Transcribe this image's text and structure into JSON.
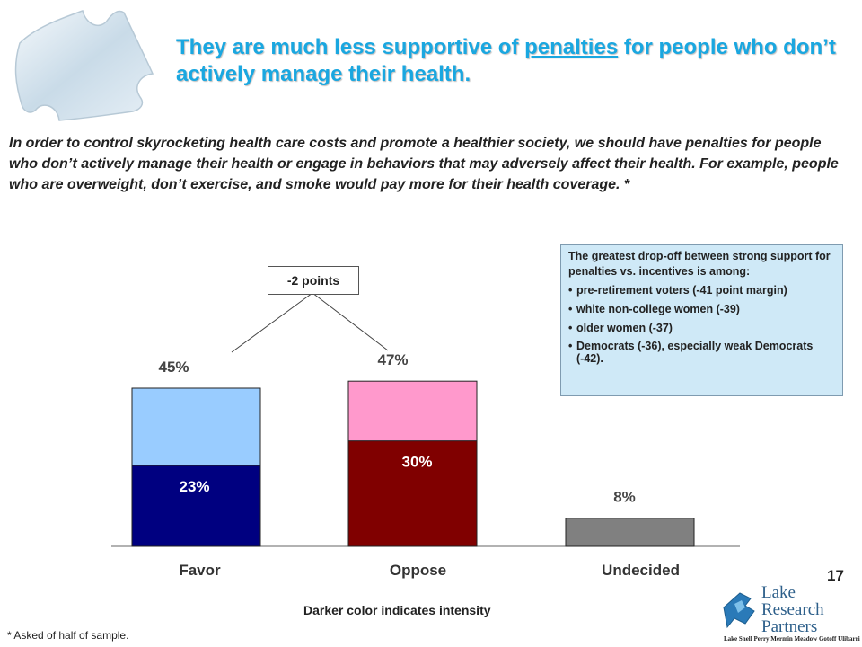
{
  "slide": {
    "title_part1": "They are much less supportive of ",
    "title_underlined": "penalties",
    "title_part2": " for people who don’t actively manage their health.",
    "question": "In order to control skyrocketing health care costs and promote a healthier society, we should have penalties for people who don’t actively manage their health or engage in behaviors that may adversely affect their health.  For example, people who are overweight, don’t exercise, and smoke would pay more for their health coverage. *",
    "callout_intro": "The greatest drop-off between strong support for penalties vs. incentives is among:",
    "callout_items": [
      "pre-retirement voters (-41 point margin)",
      "white non-college women (-39)",
      "older women (-37)",
      "Democrats (-36), especially weak Democrats (-42)."
    ],
    "points_label": "-2 points",
    "intensity_note": "Darker color indicates intensity",
    "footnote": "* Asked of half of sample.",
    "page_number": "17",
    "logo": {
      "line1": "Lake",
      "line2": "Research",
      "line3": "Partners",
      "partners": "Lake  Snell  Perry  Mermin  Meadow  Gotoff  Ulibarri"
    }
  },
  "chart_data": {
    "type": "bar",
    "stacked": true,
    "categories": [
      "Favor",
      "Oppose",
      "Undecided"
    ],
    "totals": [
      45,
      47,
      8
    ],
    "strong": [
      23,
      30,
      null
    ],
    "total_labels": [
      "45%",
      "47%",
      "8%"
    ],
    "strong_labels": [
      "23%",
      "30%",
      ""
    ],
    "ylim": [
      0,
      50
    ],
    "colors": {
      "favor_total": "#99ccff",
      "favor_strong": "#000080",
      "oppose_total": "#ff99cc",
      "oppose_strong": "#800000",
      "undecided": "#808080"
    }
  }
}
